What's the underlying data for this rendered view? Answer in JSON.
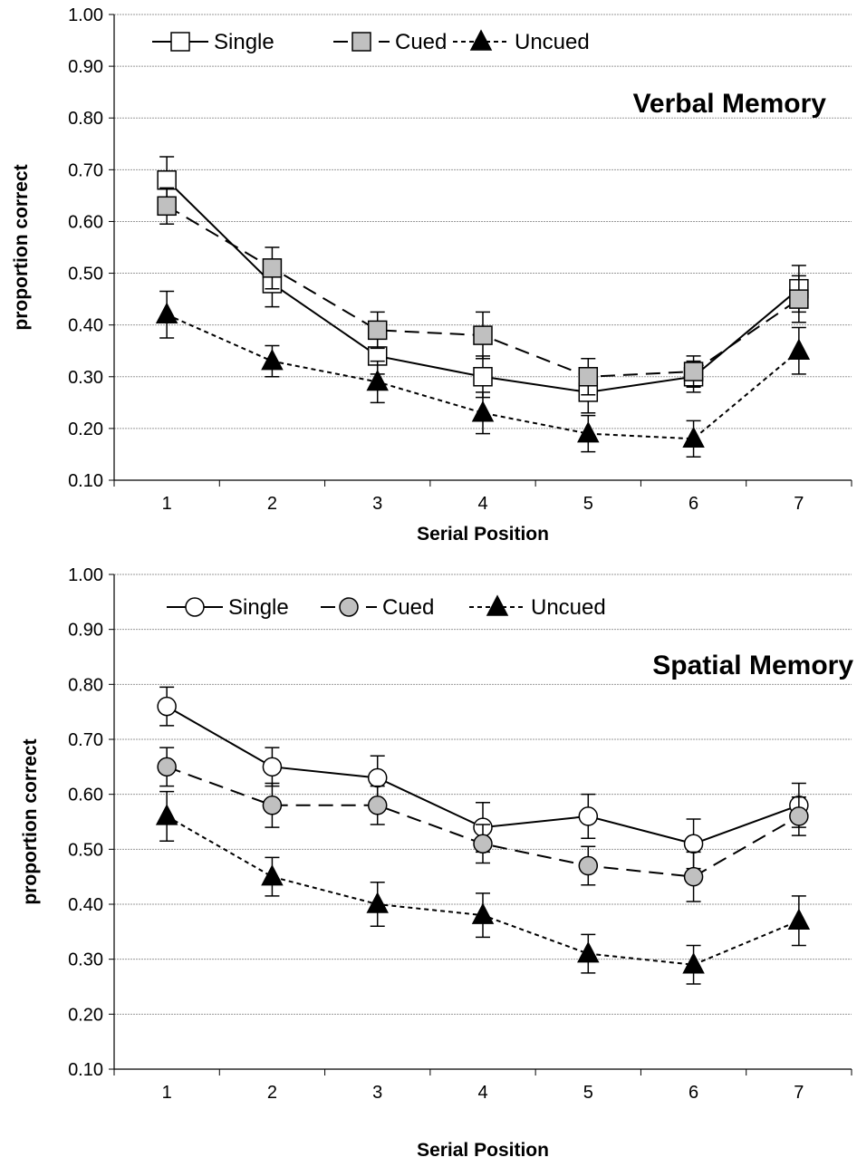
{
  "chart_data": [
    {
      "type": "line",
      "title": "Verbal Memory",
      "xlabel": "Serial Position",
      "ylabel": "proportion correct",
      "categories": [
        "1",
        "2",
        "3",
        "4",
        "5",
        "6",
        "7"
      ],
      "ylim": [
        0.1,
        1.0
      ],
      "yticks": [
        "0.10",
        "0.20",
        "0.30",
        "0.40",
        "0.50",
        "0.60",
        "0.70",
        "0.80",
        "0.90",
        "1.00"
      ],
      "grid": true,
      "legend_position": "top-left",
      "series": [
        {
          "name": "Single",
          "marker": "square",
          "fill": "#ffffff",
          "dash": "solid",
          "values": [
            0.68,
            0.48,
            0.34,
            0.3,
            0.27,
            0.3,
            0.47
          ],
          "errors": [
            0.045,
            0.045,
            0.035,
            0.04,
            0.04,
            0.03,
            0.045
          ]
        },
        {
          "name": "Cued",
          "marker": "square",
          "fill": "#c0c0c0",
          "dash": "dashed",
          "values": [
            0.63,
            0.51,
            0.39,
            0.38,
            0.3,
            0.31,
            0.45
          ],
          "errors": [
            0.035,
            0.04,
            0.035,
            0.045,
            0.035,
            0.03,
            0.045
          ]
        },
        {
          "name": "Uncued",
          "marker": "triangle",
          "fill": "#000000",
          "dash": "dotted",
          "values": [
            0.42,
            0.33,
            0.29,
            0.23,
            0.19,
            0.18,
            0.35
          ],
          "errors": [
            0.045,
            0.03,
            0.04,
            0.04,
            0.035,
            0.035,
            0.045
          ]
        }
      ]
    },
    {
      "type": "line",
      "title": "Spatial Memory",
      "xlabel": "Serial Position",
      "ylabel": "proportion correct",
      "categories": [
        "1",
        "2",
        "3",
        "4",
        "5",
        "6",
        "7"
      ],
      "ylim": [
        0.1,
        1.0
      ],
      "yticks": [
        "0.10",
        "0.20",
        "0.30",
        "0.40",
        "0.50",
        "0.60",
        "0.70",
        "0.80",
        "0.90",
        "1.00"
      ],
      "grid": true,
      "legend_position": "top-left",
      "series": [
        {
          "name": "Single",
          "marker": "circle",
          "fill": "#ffffff",
          "dash": "solid",
          "values": [
            0.76,
            0.65,
            0.63,
            0.54,
            0.56,
            0.51,
            0.58
          ],
          "errors": [
            0.035,
            0.035,
            0.04,
            0.045,
            0.04,
            0.045,
            0.04
          ]
        },
        {
          "name": "Cued",
          "marker": "circle",
          "fill": "#c0c0c0",
          "dash": "dashed",
          "values": [
            0.65,
            0.58,
            0.58,
            0.51,
            0.47,
            0.45,
            0.56
          ],
          "errors": [
            0.035,
            0.04,
            0.035,
            0.035,
            0.035,
            0.045,
            0.035
          ]
        },
        {
          "name": "Uncued",
          "marker": "triangle",
          "fill": "#000000",
          "dash": "dotted",
          "values": [
            0.56,
            0.45,
            0.4,
            0.38,
            0.31,
            0.29,
            0.37
          ],
          "errors": [
            0.045,
            0.035,
            0.04,
            0.04,
            0.035,
            0.035,
            0.045
          ]
        }
      ]
    }
  ]
}
